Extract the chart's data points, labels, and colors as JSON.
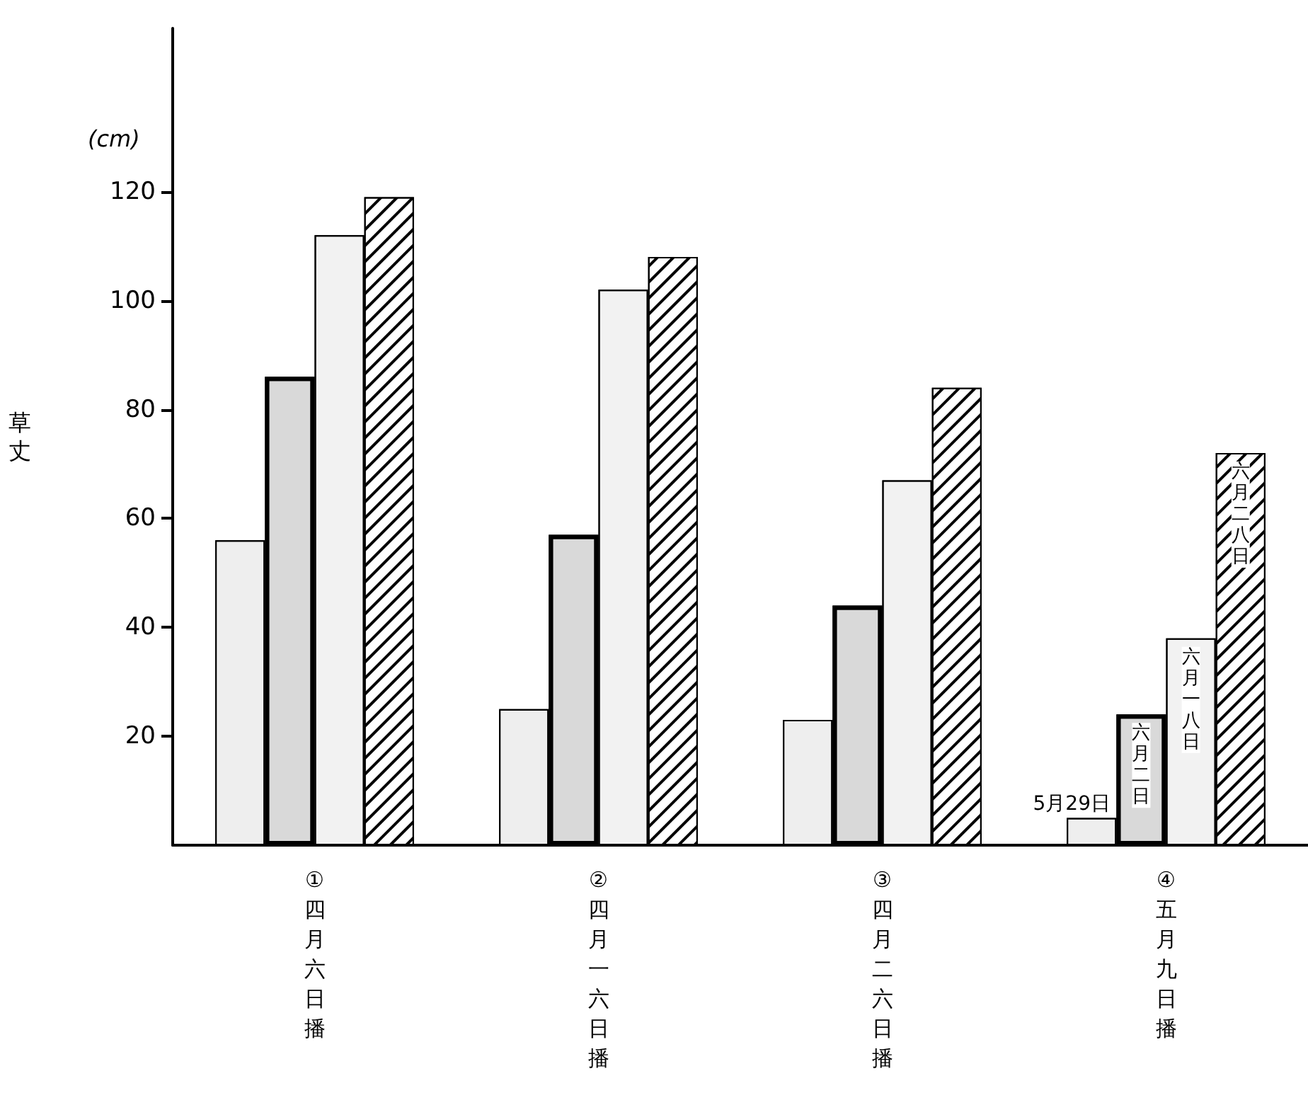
{
  "chart_data": {
    "type": "bar",
    "ylabel": "草丈",
    "annotations": [
      "(cm)"
    ],
    "categories": [
      "①四月六日播",
      "②四月一六日播",
      "③四月二六日播",
      "④五月九日播"
    ],
    "series": [
      {
        "name": "5月29日",
        "color": "#eeeeee",
        "values": [
          56,
          25,
          23,
          5
        ]
      },
      {
        "name": "六月二日",
        "color": "#d9d9d9",
        "values": [
          86,
          57,
          44,
          24
        ]
      },
      {
        "name": "六月一八日",
        "color": "#f2f2f2",
        "values": [
          112,
          102,
          67,
          38
        ]
      },
      {
        "name": "六月二八日",
        "color": "#ffffff",
        "values": [
          119,
          108,
          84,
          72
        ]
      }
    ],
    "ylim": [
      0,
      150
    ],
    "yticks": [
      20,
      40,
      60,
      80,
      100,
      120
    ],
    "grid": false,
    "legend": false
  }
}
